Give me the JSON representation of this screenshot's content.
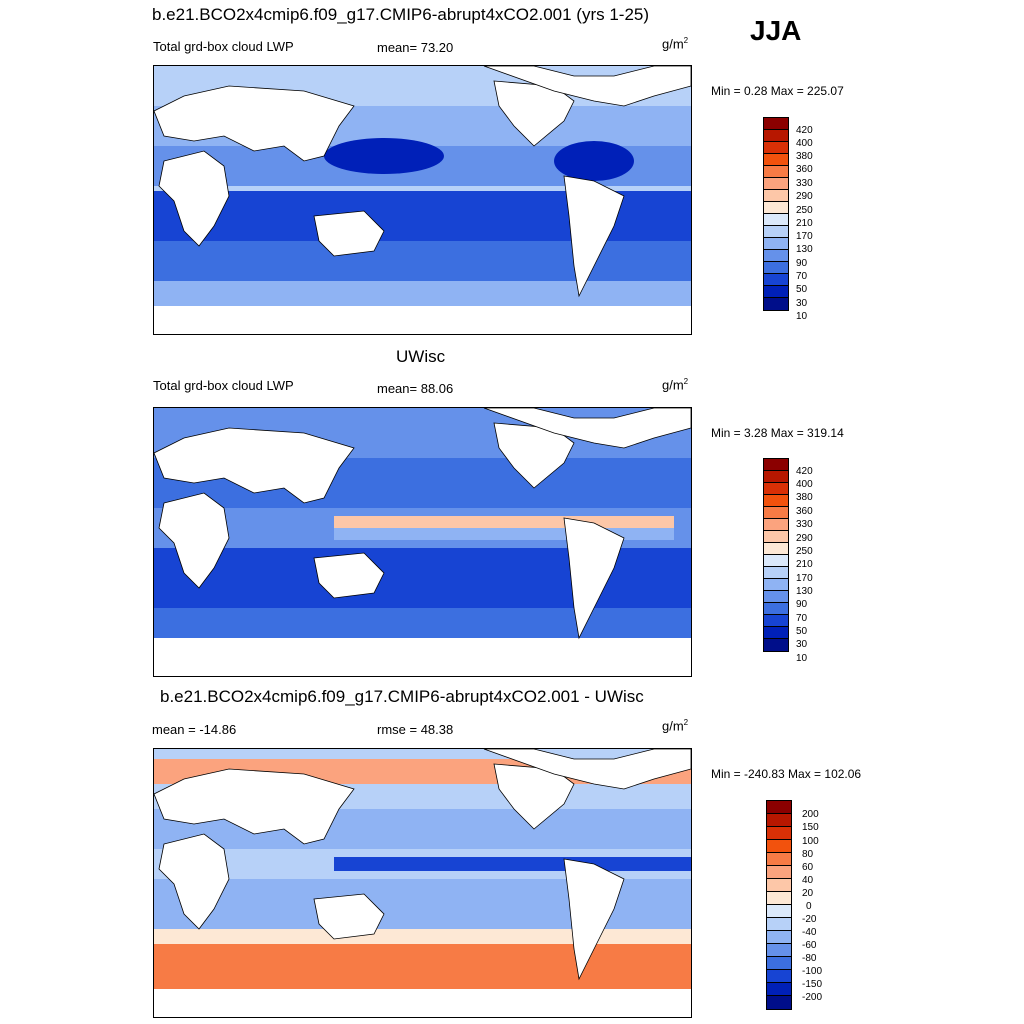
{
  "season": "JJA",
  "panels": [
    {
      "title": "b.e21.BCO2x4cmip6.f09_g17.CMIP6-abrupt4xCO2.001 (yrs 1-25)",
      "left_label": "Total grd-box cloud LWP",
      "center_label": "mean=  73.20",
      "units": "g/m",
      "units_exp": "2",
      "minmax": "Min =   0.28 Max = 225.07",
      "colorbar_labels": [
        "420",
        "400",
        "380",
        "360",
        "330",
        "290",
        "250",
        "210",
        "170",
        "130",
        "90",
        "70",
        "50",
        "30",
        "10"
      ]
    },
    {
      "title": "UWisc",
      "left_label": "Total grd-box cloud LWP",
      "center_label": "mean=  88.06",
      "units": "g/m",
      "units_exp": "2",
      "minmax": "Min =   3.28 Max = 319.14",
      "colorbar_labels": [
        "420",
        "400",
        "380",
        "360",
        "330",
        "290",
        "250",
        "210",
        "170",
        "130",
        "90",
        "70",
        "50",
        "30",
        "10"
      ]
    },
    {
      "title": "b.e21.BCO2x4cmip6.f09_g17.CMIP6-abrupt4xCO2.001 - UWisc",
      "left_label": "mean = -14.86",
      "center_label": "rmse =  48.38",
      "units": "g/m",
      "units_exp": "2",
      "minmax": "Min = -240.83 Max = 102.06",
      "colorbar_labels": [
        "200",
        "150",
        "100",
        "80",
        "60",
        "40",
        "20",
        "0",
        "-20",
        "-40",
        "-60",
        "-80",
        "-100",
        "-150",
        "-200"
      ]
    }
  ],
  "colors": {
    "abs_scale": [
      "#8b0000",
      "#b71700",
      "#d93006",
      "#f2520d",
      "#f77b45",
      "#fba37e",
      "#fdc7a8",
      "#fde8d5",
      "#dbe9fb",
      "#b7d1f8",
      "#8fb3f3",
      "#6591ea",
      "#3c6fe0",
      "#1744d3",
      "#0020b8",
      "#000e8a"
    ],
    "diff_scale": [
      "#8b0000",
      "#b71700",
      "#d93006",
      "#f2520d",
      "#f77b45",
      "#fba37e",
      "#fdc7a8",
      "#fde8d5",
      "#dbe9fb",
      "#b7d1f8",
      "#8fb3f3",
      "#6591ea",
      "#3c6fe0",
      "#1744d3",
      "#0020b8",
      "#000e8a"
    ],
    "land": "#ffffff",
    "coast": "#000000"
  }
}
